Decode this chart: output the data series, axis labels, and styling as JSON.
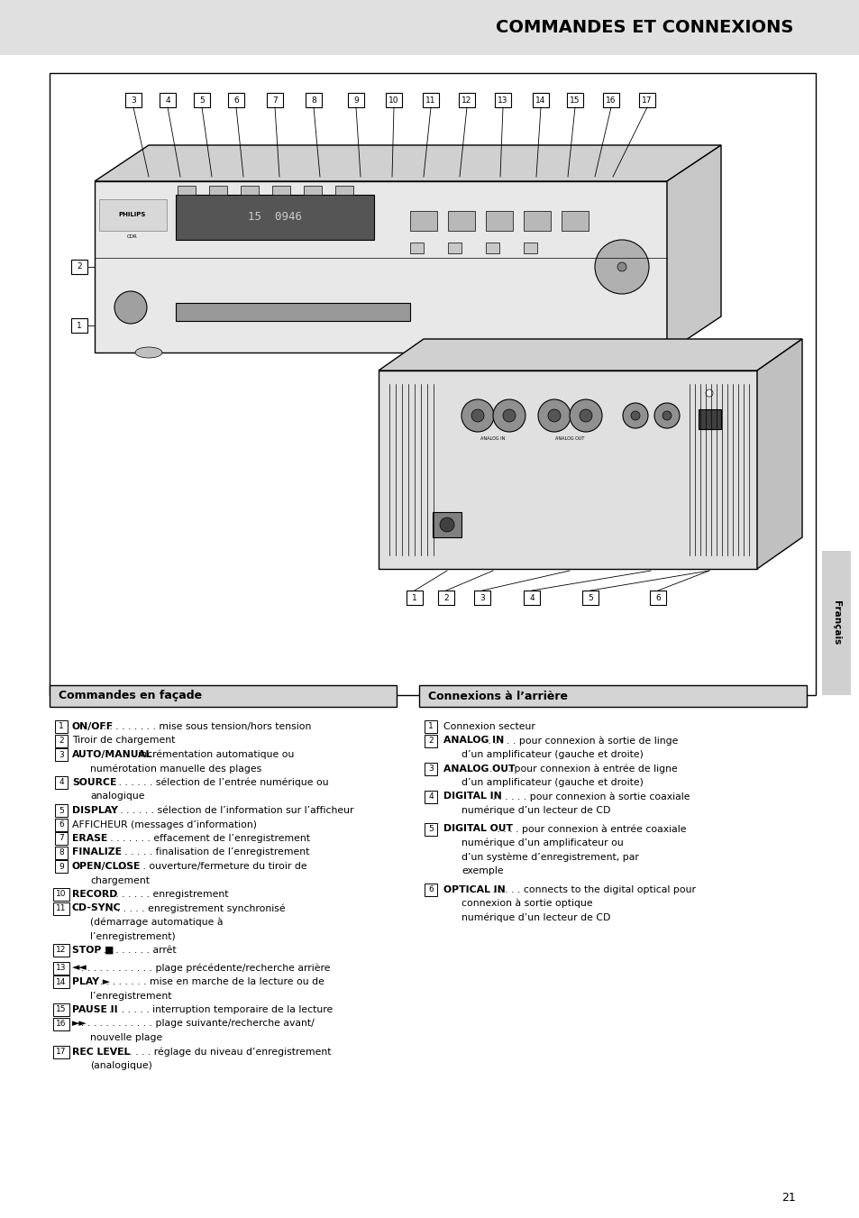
{
  "title": "COMMANDES ET CONNEXIONS",
  "bg_color": "#e8e8e8",
  "page_number": "21",
  "sidebar_text": "Français",
  "left_header": "Commandes en façade",
  "right_header": "Connexions à l’arrière",
  "left_items": [
    {
      "num": "1",
      "bold": "ON/OFF",
      "dots": " . . . . . . . . .",
      "text": " mise sous tension/hors tension",
      "extra_lines": []
    },
    {
      "num": "2",
      "bold": "",
      "dots": "",
      "text": "Tiroir de chargement",
      "extra_lines": []
    },
    {
      "num": "3",
      "bold": "AUTO/MANUAL",
      "dots": " . .",
      "text": " incrémentation automatique ou",
      "extra_lines": [
        "numérotation manuelle des plages"
      ]
    },
    {
      "num": "4",
      "bold": "SOURCE",
      "dots": ". . . . . . . . .",
      "text": " sélection de l’entrée numérique ou",
      "extra_lines": [
        "analogique"
      ]
    },
    {
      "num": "5",
      "bold": "DISPLAY",
      "dots": " . . . . . . . .",
      "text": " sélection de l’information sur l’afficheur",
      "extra_lines": []
    },
    {
      "num": "6",
      "bold": "",
      "dots": "",
      "text": "AFFICHEUR (messages d’information)",
      "extra_lines": []
    },
    {
      "num": "7",
      "bold": "ERASE",
      "dots": " . . . . . . . . .",
      "text": " effacement de l’enregistrement",
      "extra_lines": []
    },
    {
      "num": "8",
      "bold": "FINALIZE",
      "dots": " . . . . . . .",
      "text": " finalisation de l’enregistrement",
      "extra_lines": []
    },
    {
      "num": "9",
      "bold": "OPEN/CLOSE",
      "dots": ". . . . .",
      "text": " ouverture/fermeture du tiroir de",
      "extra_lines": [
        "chargement"
      ]
    },
    {
      "num": "10",
      "bold": "RECORD",
      "dots": " . . . . . . . .",
      "text": " enregistrement",
      "extra_lines": []
    },
    {
      "num": "11",
      "bold": "CD-SYNC",
      "dots": ". . . . . . .",
      "text": " enregistrement synchronisé",
      "extra_lines": [
        "(démarrage automatique à",
        "l’enregistrement)"
      ]
    },
    {
      "num": "12",
      "bold": "STOP ■",
      "dots": " . . . . . . . .",
      "text": " arrêt",
      "extra_lines": []
    },
    {
      "num": "13",
      "bold": "◄◄",
      "dots": ". . . . . . . . . . . .",
      "text": " plage précédente/recherche arrière",
      "extra_lines": []
    },
    {
      "num": "14",
      "bold": "PLAY ►",
      "dots": ". . . . . . . .",
      "text": " mise en marche de la lecture ou de",
      "extra_lines": [
        "l’enregistrement"
      ]
    },
    {
      "num": "15",
      "bold": "PAUSE II",
      "dots": ". . . . . . .",
      "text": " interruption temporaire de la lecture",
      "extra_lines": []
    },
    {
      "num": "16",
      "bold": "►►",
      "dots": ". . . . . . . . . . . .",
      "text": " plage suivante/recherche avant/",
      "extra_lines": [
        "nouvelle plage"
      ]
    },
    {
      "num": "17",
      "bold": "REC LEVEL",
      "dots": " . . . . . .",
      "text": " réglage du niveau d’enregistrement",
      "extra_lines": [
        "(analogique)"
      ]
    }
  ],
  "right_items": [
    {
      "num": "1",
      "bold": "",
      "dots": "",
      "text": "Connexion secteur",
      "extra_lines": []
    },
    {
      "num": "2",
      "bold": "ANALOG IN",
      "dots": " . . . . .",
      "text": " pour connexion à sortie de linge",
      "extra_lines": [
        "d’un amplificateur (gauche et droite)"
      ]
    },
    {
      "num": "3",
      "bold": "ANALOG OUT",
      "dots": ". . . .",
      "text": " pour connexion à entrée de ligne",
      "extra_lines": [
        "d’un amplificateur (gauche et droite)"
      ]
    },
    {
      "num": "4",
      "bold": "DIGITAL IN",
      "dots": " . . . . . .",
      "text": " pour connexion à sortie coaxiale",
      "extra_lines": [
        "numérique d’un lecteur de CD"
      ]
    },
    {
      "num": "5",
      "bold": "DIGITAL OUT",
      "dots": " . . . .",
      "text": " pour connexion à entrée coaxiale",
      "extra_lines": [
        "numérique d’un amplificateur ou",
        "d’un système d’enregistrement, par",
        "exemple"
      ]
    },
    {
      "num": "6",
      "bold": "OPTICAL IN",
      "dots": " . . . . .",
      "text": " connects to the digital optical pour",
      "extra_lines": [
        "connexion à sortie optique",
        "numérique d’un lecteur de CD"
      ]
    }
  ],
  "front_nums": [
    "3",
    "4",
    "5",
    "6",
    "7",
    "8",
    "9",
    "10",
    "11",
    "12",
    "13",
    "14",
    "15",
    "16",
    "17"
  ],
  "back_nums": [
    "1",
    "2",
    "3",
    "4",
    "5",
    "6"
  ]
}
